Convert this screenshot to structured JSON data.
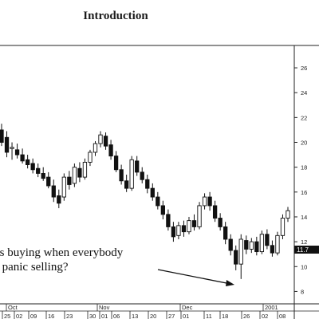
{
  "page": {
    "title": "Introduction"
  },
  "annotations": [
    "as buying when everybody",
    "s panic selling?"
  ],
  "price_label": "11.7",
  "chart_data": {
    "type": "candlestick",
    "title": "",
    "ylim": [
      7,
      27.8
    ],
    "y_ticks": [
      8,
      10,
      12,
      14,
      16,
      18,
      20,
      22,
      24,
      26
    ],
    "month_labels": [
      "Oct",
      "Nov",
      "Dec",
      "2001"
    ],
    "day_labels": [
      "25",
      "02",
      "09",
      "16",
      "23",
      "30",
      "01",
      "06",
      "13",
      "20",
      "27",
      "01",
      "11",
      "18",
      "26",
      "02",
      "08"
    ],
    "candles": [
      [
        21.0,
        21.5,
        19.7,
        20.0
      ],
      [
        20.4,
        20.9,
        18.8,
        19.2
      ],
      [
        19.5,
        20.0,
        18.6,
        19.6
      ],
      [
        19.4,
        19.9,
        18.7,
        19.0
      ],
      [
        19.0,
        19.5,
        18.3,
        18.5
      ],
      [
        18.6,
        19.0,
        17.9,
        18.2
      ],
      [
        18.3,
        18.7,
        17.5,
        17.8
      ],
      [
        17.9,
        18.3,
        17.2,
        17.5
      ],
      [
        17.5,
        18.0,
        16.9,
        17.1
      ],
      [
        17.2,
        17.6,
        16.3,
        16.5
      ],
      [
        16.5,
        17.0,
        15.2,
        15.6
      ],
      [
        15.7,
        16.2,
        14.7,
        15.1
      ],
      [
        15.6,
        17.5,
        15.3,
        17.2
      ],
      [
        17.2,
        17.7,
        16.2,
        16.6
      ],
      [
        16.7,
        18.3,
        16.4,
        18.0
      ],
      [
        17.9,
        18.4,
        16.8,
        17.2
      ],
      [
        17.2,
        18.7,
        17.0,
        18.4
      ],
      [
        18.4,
        19.4,
        18.1,
        19.2
      ],
      [
        19.2,
        20.1,
        18.9,
        19.9
      ],
      [
        19.9,
        20.9,
        19.6,
        20.6
      ],
      [
        20.5,
        20.8,
        19.4,
        19.7
      ],
      [
        19.8,
        20.2,
        18.6,
        18.9
      ],
      [
        18.9,
        19.3,
        17.6,
        17.8
      ],
      [
        17.8,
        18.2,
        16.6,
        16.9
      ],
      [
        16.9,
        17.4,
        16.0,
        16.3
      ],
      [
        16.3,
        18.9,
        16.1,
        18.6
      ],
      [
        18.5,
        18.9,
        17.3,
        17.6
      ],
      [
        17.6,
        18.0,
        16.7,
        17.0
      ],
      [
        17.0,
        17.4,
        15.9,
        16.3
      ],
      [
        16.3,
        16.7,
        15.3,
        15.6
      ],
      [
        15.6,
        16.0,
        14.6,
        14.9
      ],
      [
        14.9,
        15.3,
        13.8,
        14.2
      ],
      [
        14.2,
        14.6,
        12.9,
        13.2
      ],
      [
        13.2,
        13.6,
        12.0,
        12.4
      ],
      [
        12.5,
        13.6,
        12.2,
        13.3
      ],
      [
        13.3,
        13.7,
        12.4,
        12.8
      ],
      [
        12.8,
        14.0,
        12.6,
        13.7
      ],
      [
        13.7,
        14.2,
        12.9,
        13.2
      ],
      [
        13.2,
        15.2,
        13.0,
        14.9
      ],
      [
        14.9,
        15.9,
        14.6,
        15.6
      ],
      [
        15.6,
        16.0,
        14.5,
        14.9
      ],
      [
        14.9,
        15.3,
        13.6,
        13.9
      ],
      [
        13.9,
        14.3,
        12.9,
        13.2
      ],
      [
        13.2,
        13.6,
        11.8,
        12.2
      ],
      [
        12.2,
        12.6,
        10.9,
        11.3
      ],
      [
        11.3,
        11.7,
        9.7,
        10.2
      ],
      [
        10.2,
        12.6,
        9.0,
        12.2
      ],
      [
        12.1,
        12.5,
        11.0,
        11.4
      ],
      [
        11.4,
        12.3,
        11.1,
        12.0
      ],
      [
        12.0,
        12.4,
        10.9,
        11.2
      ],
      [
        11.2,
        12.9,
        11.0,
        12.6
      ],
      [
        12.6,
        13.0,
        11.4,
        11.7
      ],
      [
        11.7,
        12.1,
        10.8,
        11.1
      ],
      [
        11.1,
        12.8,
        10.9,
        12.5
      ],
      [
        12.5,
        14.2,
        12.2,
        13.9
      ],
      [
        13.9,
        14.8,
        13.6,
        14.5
      ]
    ]
  }
}
